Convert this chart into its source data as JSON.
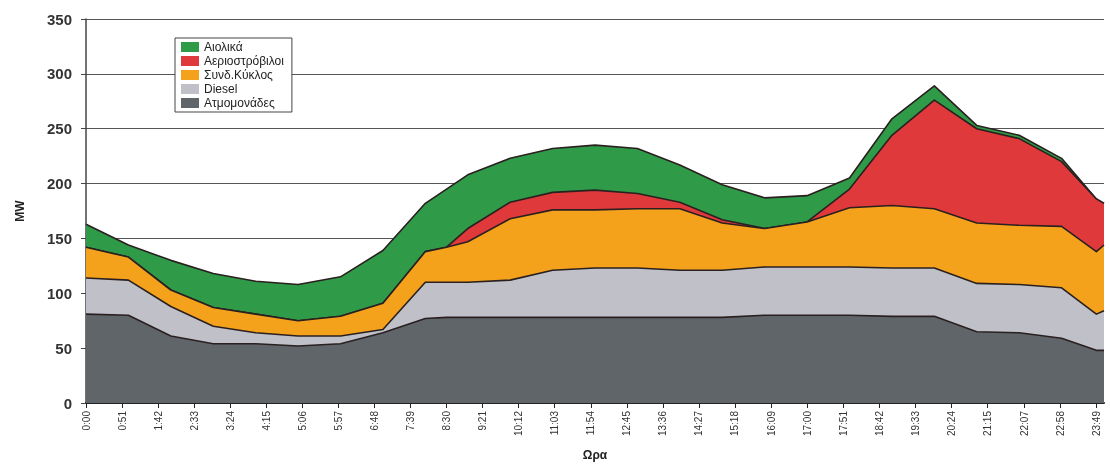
{
  "chart_data": {
    "type": "area",
    "stacked": true,
    "xlabel": "Ωρα",
    "ylabel": "MW",
    "x": [
      0,
      1,
      2,
      3,
      4,
      5,
      6,
      7,
      8,
      8.5,
      9,
      10,
      11,
      12,
      13,
      14,
      15,
      16,
      17,
      18,
      19,
      20,
      21,
      22,
      23,
      23.82,
      24
    ],
    "series": [
      {
        "name": "Ατμομονάδες",
        "color": "#60656a",
        "values": [
          81,
          80,
          61,
          54,
          54,
          52,
          54,
          64,
          77,
          78,
          78,
          78,
          78,
          78,
          78,
          78,
          78,
          80,
          80,
          80,
          79,
          79,
          65,
          64,
          59,
          48,
          48
        ]
      },
      {
        "name": "Diesel",
        "color": "#bfc0c8",
        "values": [
          33,
          32,
          27,
          16,
          10,
          9,
          7,
          3,
          33,
          32,
          32,
          34,
          43,
          45,
          45,
          43,
          43,
          44,
          44,
          44,
          44,
          44,
          44,
          44,
          46,
          33,
          36
        ]
      },
      {
        "name": "Συνδ.Κύκλος",
        "color": "#f4a11c",
        "values": [
          28,
          21,
          15,
          17,
          17,
          14,
          18,
          24,
          28,
          32,
          37,
          56,
          55,
          53,
          54,
          56,
          43,
          35,
          41,
          54,
          57,
          54,
          55,
          54,
          56,
          57,
          60
        ]
      },
      {
        "name": "Αεριοστρόβιλοι",
        "color": "#e0393c",
        "values": [
          0,
          0,
          0,
          0,
          0,
          0,
          0,
          0,
          0,
          0,
          12,
          15,
          16,
          18,
          14,
          6,
          3,
          0,
          0,
          17,
          64,
          99,
          86,
          79,
          59,
          48,
          38
        ]
      },
      {
        "name": "Αιολικά",
        "color": "#2f9a47",
        "values": [
          21,
          11,
          27,
          31,
          30,
          33,
          36,
          48,
          44,
          53,
          49,
          40,
          40,
          41,
          41,
          34,
          32,
          28,
          24,
          10,
          15,
          13,
          3,
          3,
          3,
          0,
          0
        ]
      }
    ],
    "xlim": [
      0,
      24
    ],
    "xticks": [
      {
        "value": 0,
        "label": "0:00"
      },
      {
        "value": 0.85,
        "label": "0:51"
      },
      {
        "value": 1.7,
        "label": "1:42"
      },
      {
        "value": 2.55,
        "label": "2:33"
      },
      {
        "value": 3.4,
        "label": "3:24"
      },
      {
        "value": 4.25,
        "label": "4:15"
      },
      {
        "value": 5.1,
        "label": "5:06"
      },
      {
        "value": 5.95,
        "label": "5:57"
      },
      {
        "value": 6.8,
        "label": "6:48"
      },
      {
        "value": 7.65,
        "label": "7:39"
      },
      {
        "value": 8.5,
        "label": "8:30"
      },
      {
        "value": 9.35,
        "label": "9:21"
      },
      {
        "value": 10.2,
        "label": "10:12"
      },
      {
        "value": 11.05,
        "label": "11:03"
      },
      {
        "value": 11.9,
        "label": "11:54"
      },
      {
        "value": 12.75,
        "label": "12:45"
      },
      {
        "value": 13.6,
        "label": "13:36"
      },
      {
        "value": 14.45,
        "label": "14:27"
      },
      {
        "value": 15.3,
        "label": "15:18"
      },
      {
        "value": 16.15,
        "label": "16:09"
      },
      {
        "value": 17,
        "label": "17:00"
      },
      {
        "value": 17.85,
        "label": "17:51"
      },
      {
        "value": 18.7,
        "label": "18:42"
      },
      {
        "value": 19.55,
        "label": "19:33"
      },
      {
        "value": 20.4,
        "label": "20:24"
      },
      {
        "value": 21.25,
        "label": "21:15"
      },
      {
        "value": 22.1167,
        "label": "22:07"
      },
      {
        "value": 22.9667,
        "label": "22:58"
      },
      {
        "value": 23.8167,
        "label": "23:49"
      }
    ],
    "ylim": [
      0,
      350
    ],
    "yticks": [
      0,
      50,
      100,
      150,
      200,
      250,
      300,
      350
    ],
    "grid": "y",
    "legend": "top left",
    "marker": "none"
  }
}
